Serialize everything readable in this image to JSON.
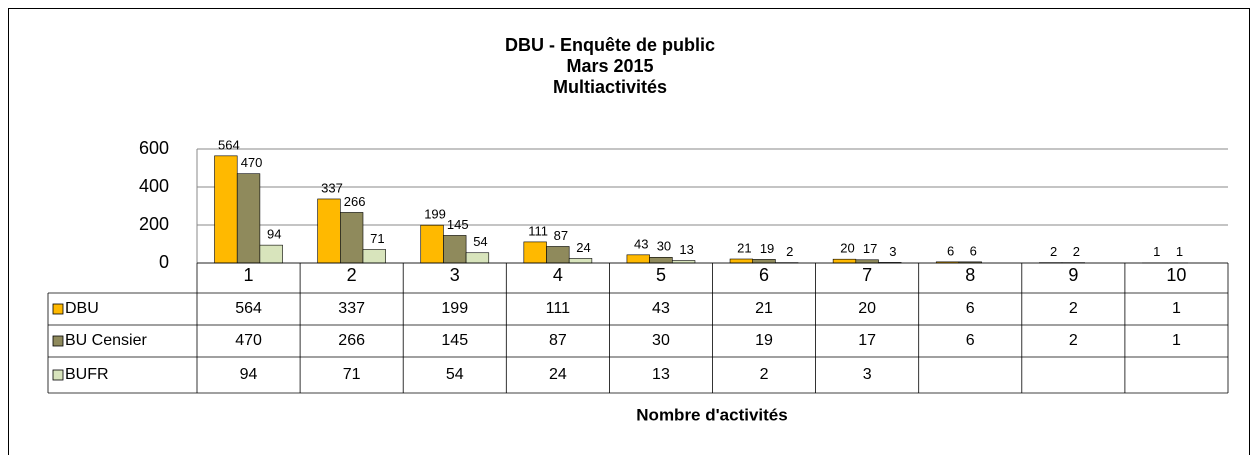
{
  "chart_data": {
    "type": "bar",
    "title": [
      "DBU - Enquête de public",
      "Mars 2015",
      "Multiactivités"
    ],
    "xlabel": "Nombre d'activités",
    "categories": [
      "1",
      "2",
      "3",
      "4",
      "5",
      "6",
      "7",
      "8",
      "9",
      "10"
    ],
    "series": [
      {
        "name": "DBU",
        "color": "#ffb900",
        "values": [
          564,
          337,
          199,
          111,
          43,
          21,
          20,
          6,
          2,
          1
        ]
      },
      {
        "name": "BU Censier",
        "color": "#8f8a5c",
        "values": [
          470,
          266,
          145,
          87,
          30,
          19,
          17,
          6,
          2,
          1
        ]
      },
      {
        "name": "BUFR",
        "color": "#d8e4bc",
        "values": [
          94,
          71,
          54,
          24,
          13,
          2,
          3,
          null,
          null,
          null
        ]
      }
    ],
    "ylim": [
      0,
      600
    ],
    "yticks": [
      0,
      200,
      400,
      600
    ],
    "grid": true
  }
}
